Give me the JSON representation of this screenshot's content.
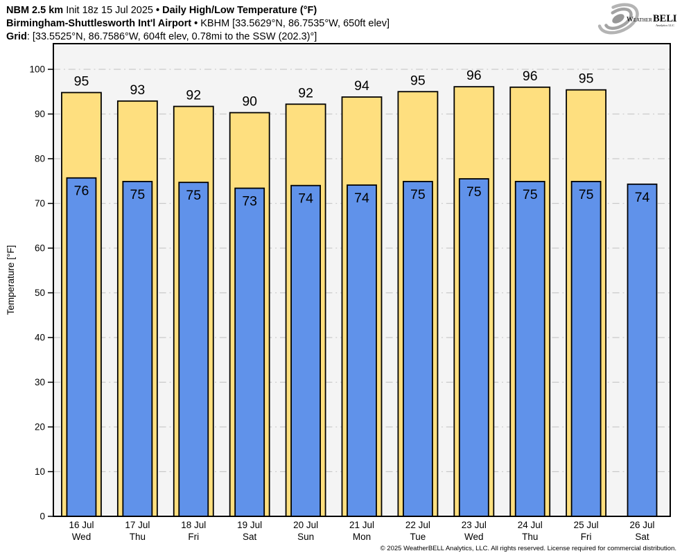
{
  "header": {
    "line1": {
      "model": "NBM 2.5 km",
      "init": "Init 18z 15 Jul 2025",
      "sep": "•",
      "title": "Daily High/Low Temperature (°F)"
    },
    "line2": {
      "station": "Birmingham-Shuttlesworth Int'l Airport",
      "sep": "•",
      "details": "KBHM [33.5629°N, 86.7535°W, 650ft elev]"
    },
    "line3": {
      "label": "Grid",
      "details": ": [33.5525°N, 86.7586°W, 604ft elev, 0.78mi to the SSW (202.3)°]"
    }
  },
  "logo": {
    "weather": "Weather",
    "bell": "BELL",
    "subtitle": "Analytics LLC"
  },
  "colors": {
    "high": "#FEDF7F",
    "low": "#6092EA",
    "plot_bg": "#F4F4F4",
    "grid": "#C9C9C9",
    "axis": "#000000"
  },
  "chart_data": {
    "type": "bar",
    "title": "Daily High/Low Temperature (°F)",
    "subtitle": "NBM 2.5 km · Birmingham-Shuttlesworth Int'l Airport (KBHM)",
    "xlabel": "",
    "ylabel": "Temperature [°F]",
    "ylim": [
      0,
      106
    ],
    "yticks": [
      0,
      10,
      20,
      30,
      40,
      50,
      60,
      70,
      80,
      90,
      100
    ],
    "grid": true,
    "legend_position": "none",
    "categories": [
      {
        "date": "16 Jul",
        "day": "Wed"
      },
      {
        "date": "17 Jul",
        "day": "Thu"
      },
      {
        "date": "18 Jul",
        "day": "Fri"
      },
      {
        "date": "19 Jul",
        "day": "Sat"
      },
      {
        "date": "20 Jul",
        "day": "Sun"
      },
      {
        "date": "21 Jul",
        "day": "Mon"
      },
      {
        "date": "22 Jul",
        "day": "Tue"
      },
      {
        "date": "23 Jul",
        "day": "Wed"
      },
      {
        "date": "24 Jul",
        "day": "Thu"
      },
      {
        "date": "25 Jul",
        "day": "Fri"
      },
      {
        "date": "26 Jul",
        "day": "Sat"
      }
    ],
    "series": [
      {
        "name": "Daily High",
        "color": "#FEDF7F",
        "values": [
          95,
          93,
          92,
          90,
          92,
          94,
          95,
          96,
          96,
          95,
          null
        ],
        "plot_values": [
          94.8,
          92.9,
          91.7,
          90.3,
          92.2,
          93.8,
          95.0,
          96.1,
          96.0,
          95.4,
          null
        ]
      },
      {
        "name": "Daily Low",
        "color": "#6092EA",
        "values": [
          76,
          75,
          75,
          73,
          74,
          74,
          75,
          75,
          75,
          75,
          74
        ],
        "plot_values": [
          75.7,
          74.9,
          74.7,
          73.4,
          74.0,
          74.1,
          74.9,
          75.5,
          74.9,
          74.9,
          74.3
        ]
      }
    ]
  },
  "footer": {
    "copyright": "© 2025 WeatherBELL Analytics, LLC. All rights reserved. License required for commercial distribution."
  }
}
